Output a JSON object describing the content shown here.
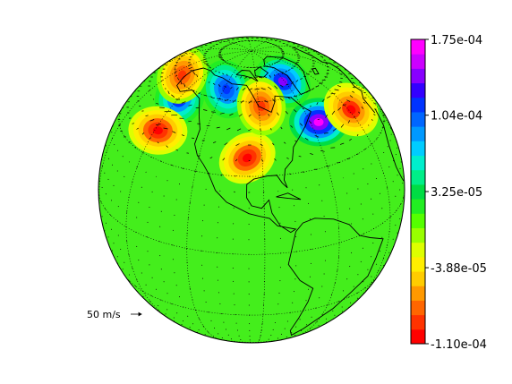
{
  "map": {
    "projection": "orthographic",
    "center_lon": -95,
    "center_lat": 25,
    "background_value": 0,
    "gridlines": "dotted",
    "coastlines": true,
    "features": [
      {
        "kind": "positive-cell",
        "lon": -55,
        "lat": 47,
        "value": 0.000175
      },
      {
        "kind": "positive-cell",
        "lon": -62,
        "lat": 68,
        "value": 0.00014
      },
      {
        "kind": "positive-cell",
        "lon": -118,
        "lat": 65,
        "value": 0.00012
      },
      {
        "kind": "positive-cell",
        "lon": -150,
        "lat": 55,
        "value": 0.00013
      },
      {
        "kind": "negative-cell",
        "lon": -97,
        "lat": 37,
        "value": -0.00011
      },
      {
        "kind": "negative-cell",
        "lon": -148,
        "lat": 40,
        "value": -0.00011
      },
      {
        "kind": "negative-cell",
        "lon": -28,
        "lat": 45,
        "value": -0.0001
      },
      {
        "kind": "negative-cell",
        "lon": -88,
        "lat": 58,
        "value": -9e-05
      },
      {
        "kind": "negative-cell",
        "lon": -170,
        "lat": 62,
        "value": -9e-05
      }
    ]
  },
  "colorbar": {
    "min": -0.00011,
    "max": 0.000175,
    "levels": 20,
    "tick_labels": [
      "1.75e-04",
      "1.04e-04",
      "3.25e-05",
      "-3.88e-05",
      "-1.10e-04"
    ],
    "tick_values": [
      0.000175,
      0.000104,
      3.25e-05,
      -3.88e-05,
      -0.00011
    ],
    "colors": [
      "#ff0000",
      "#ff3300",
      "#ff6600",
      "#ff9900",
      "#ffcc00",
      "#ffee00",
      "#ddff00",
      "#99ff00",
      "#55ff00",
      "#22ee22",
      "#00dd44",
      "#00ee88",
      "#00eecc",
      "#00ccff",
      "#0099ff",
      "#0066ff",
      "#0033ff",
      "#3300ff",
      "#8800ff",
      "#cc00ff",
      "#ff00ff"
    ]
  },
  "vector_key": {
    "label": "50 m/s"
  }
}
